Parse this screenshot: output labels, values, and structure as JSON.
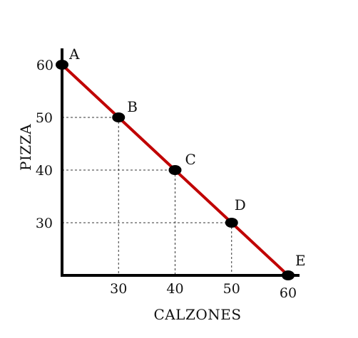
{
  "chart_data": {
    "type": "line",
    "title": "",
    "xlabel": "CALZONES",
    "ylabel": "PIZZA",
    "x_ticks": [
      {
        "value": 30,
        "label": "30"
      },
      {
        "value": 40,
        "label": "40"
      },
      {
        "value": 50,
        "label": "50"
      },
      {
        "value": 60,
        "label": "60"
      }
    ],
    "y_ticks": [
      {
        "value": 30,
        "label": "30"
      },
      {
        "value": 40,
        "label": "40"
      },
      {
        "value": 50,
        "label": "50"
      },
      {
        "value": 60,
        "label": "60"
      }
    ],
    "points": [
      {
        "label": "A",
        "x": 20,
        "y": 60
      },
      {
        "label": "B",
        "x": 30,
        "y": 50
      },
      {
        "label": "C",
        "x": 40,
        "y": 40
      },
      {
        "label": "D",
        "x": 50,
        "y": 30
      },
      {
        "label": "E",
        "x": 60,
        "y": 20
      }
    ],
    "guides": [
      "B",
      "C",
      "D"
    ],
    "xlim": [
      20,
      62
    ],
    "ylim": [
      20,
      62
    ],
    "grid": false,
    "legend": "none",
    "colors": {
      "line": "#c00000",
      "axes": "#000000",
      "points": "#000000",
      "guides": "#333333"
    }
  }
}
